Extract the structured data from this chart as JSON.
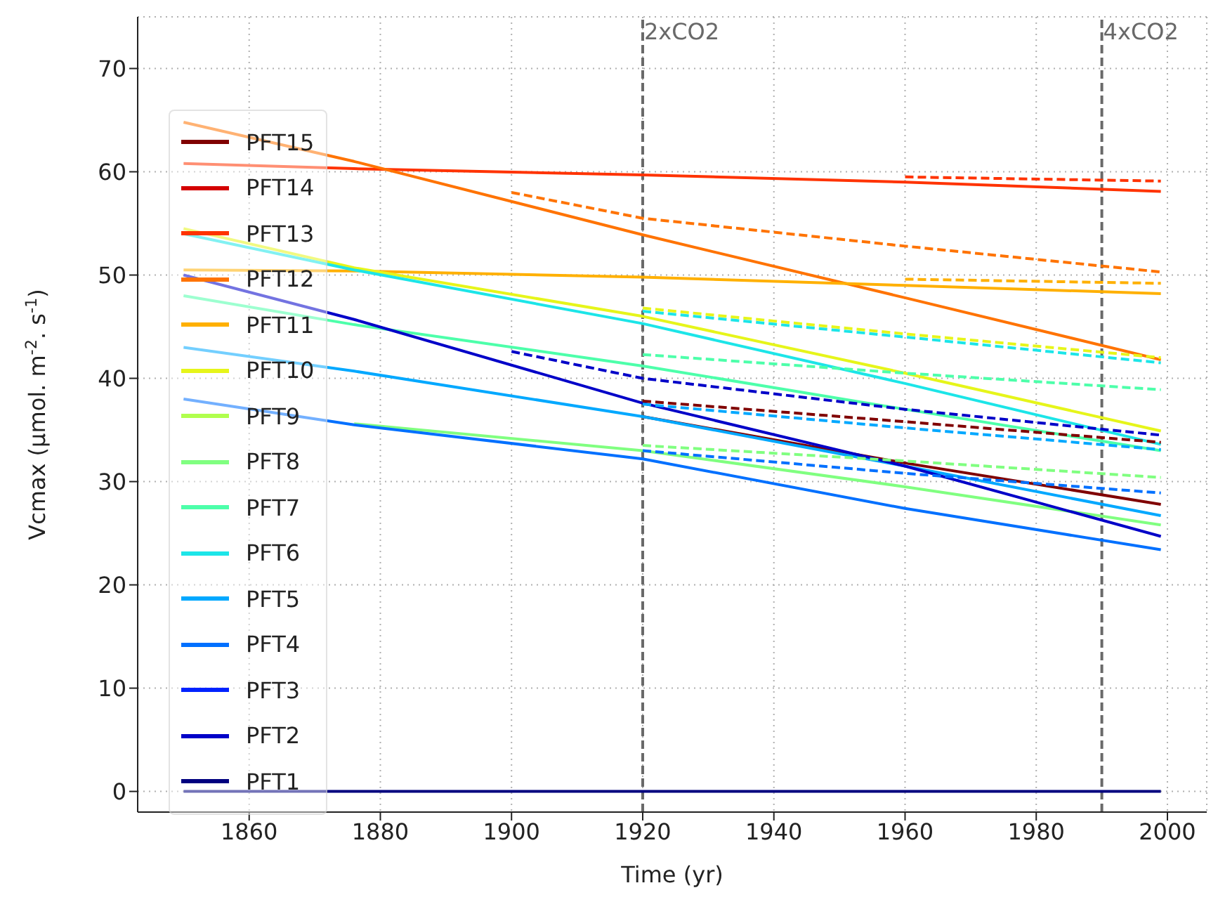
{
  "chart_data": {
    "type": "line",
    "xlabel": "Time (yr)",
    "ylabel": "Vcmax (μmol. m$^{-2}$. s$^{-1}$)",
    "x": [
      1850,
      1876,
      1920,
      1960,
      1999
    ],
    "xlim": [
      1843,
      2006
    ],
    "xticks": [
      1860,
      1880,
      1900,
      1920,
      1940,
      1960,
      1980,
      2000
    ],
    "ylim": [
      -2,
      75
    ],
    "yticks": [
      0,
      10,
      20,
      30,
      40,
      50,
      60,
      70
    ],
    "grid": true,
    "legend": "left",
    "marker": "none",
    "line_style": "solid",
    "ref_lines": [
      {
        "axis": "x",
        "value": 1920,
        "label": "2xCO2",
        "color": "#696969",
        "line_style": "dashed"
      },
      {
        "axis": "x",
        "value": 1990,
        "label": "4xCO2",
        "color": "#696969",
        "line_style": "dashed"
      }
    ],
    "series": [
      {
        "name": "PFT15",
        "color": "#800000",
        "values": [
          null,
          null,
          36.3,
          31.8,
          27.8
        ]
      },
      {
        "name": "PFT14",
        "color": "#d40000",
        "values": [
          null,
          null,
          null,
          null,
          null
        ]
      },
      {
        "name": "PFT13",
        "color": "#ff3300",
        "values": [
          60.8,
          60.3,
          59.7,
          59,
          58.1
        ]
      },
      {
        "name": "PFT12",
        "color": "#ff7300",
        "values": [
          64.8,
          61,
          53.9,
          47.8,
          41.8
        ]
      },
      {
        "name": "PFT11",
        "color": "#ffb000",
        "values": [
          50.5,
          50.4,
          49.8,
          49,
          48.2
        ]
      },
      {
        "name": "PFT10",
        "color": "#e6f51a",
        "values": [
          54.5,
          50.7,
          46,
          40.5,
          34.9
        ]
      },
      {
        "name": "PFT9",
        "color": "#b0ff4d",
        "values": [
          null,
          null,
          null,
          null,
          null
        ]
      },
      {
        "name": "PFT8",
        "color": "#80ff80",
        "values": [
          null,
          35.6,
          33,
          29.5,
          25.8
        ]
      },
      {
        "name": "PFT7",
        "color": "#4dffaa",
        "values": [
          48,
          45.2,
          41.2,
          37,
          33
        ]
      },
      {
        "name": "PFT6",
        "color": "#1ce5e8",
        "values": [
          54,
          50.5,
          45.3,
          39.5,
          33.6
        ]
      },
      {
        "name": "PFT5",
        "color": "#00a8ff",
        "values": [
          43,
          40.7,
          36.3,
          31.5,
          26.7
        ]
      },
      {
        "name": "PFT4",
        "color": "#0070ff",
        "values": [
          38,
          35.5,
          32.2,
          27.4,
          23.4
        ]
      },
      {
        "name": "PFT3",
        "color": "#0022ff",
        "values": [
          null,
          null,
          null,
          null,
          null
        ]
      },
      {
        "name": "PFT2",
        "color": "#0000c8",
        "values": [
          50,
          45.7,
          37.6,
          31.5,
          24.7
        ]
      },
      {
        "name": "PFT1",
        "color": "#00007f",
        "values": [
          0,
          0,
          0,
          0,
          0
        ]
      },
      {
        "color": "#800000",
        "line_style": "dashed",
        "x": [
          1920,
          1960,
          1999
        ],
        "values": [
          37.8,
          35.8,
          33.8
        ]
      },
      {
        "color": "#ff3300",
        "line_style": "dashed",
        "x": [
          1960,
          1999
        ],
        "values": [
          59.5,
          59.1
        ]
      },
      {
        "color": "#ff7300",
        "line_style": "dashed",
        "x": [
          1900,
          1920,
          1960,
          1999
        ],
        "values": [
          58,
          55.5,
          52.8,
          50.3
        ]
      },
      {
        "color": "#ffb000",
        "line_style": "dashed",
        "x": [
          1960,
          1999
        ],
        "values": [
          49.6,
          49.2
        ]
      },
      {
        "color": "#e6f51a",
        "line_style": "dashed",
        "x": [
          1920,
          1960,
          1999
        ],
        "values": [
          46.8,
          44.3,
          42
        ]
      },
      {
        "color": "#80ff80",
        "line_style": "dashed",
        "x": [
          1920,
          1960,
          1999
        ],
        "values": [
          33.5,
          32,
          30.4
        ]
      },
      {
        "color": "#4dffaa",
        "line_style": "dashed",
        "x": [
          1920,
          1960,
          1999
        ],
        "values": [
          42.3,
          40.5,
          38.9
        ]
      },
      {
        "color": "#1ce5e8",
        "line_style": "dashed",
        "x": [
          1920,
          1960,
          1999
        ],
        "values": [
          46.5,
          44,
          41.5
        ]
      },
      {
        "color": "#00a8ff",
        "line_style": "dashed",
        "x": [
          1920,
          1960,
          1999
        ],
        "values": [
          37.5,
          35.2,
          33.1
        ]
      },
      {
        "color": "#0070ff",
        "line_style": "dashed",
        "x": [
          1920,
          1960,
          1999
        ],
        "values": [
          33,
          30.8,
          28.9
        ]
      },
      {
        "color": "#0000c8",
        "line_style": "dashed",
        "x": [
          1900,
          1920,
          1960,
          1999
        ],
        "values": [
          42.6,
          40,
          37,
          34.5
        ]
      }
    ]
  }
}
